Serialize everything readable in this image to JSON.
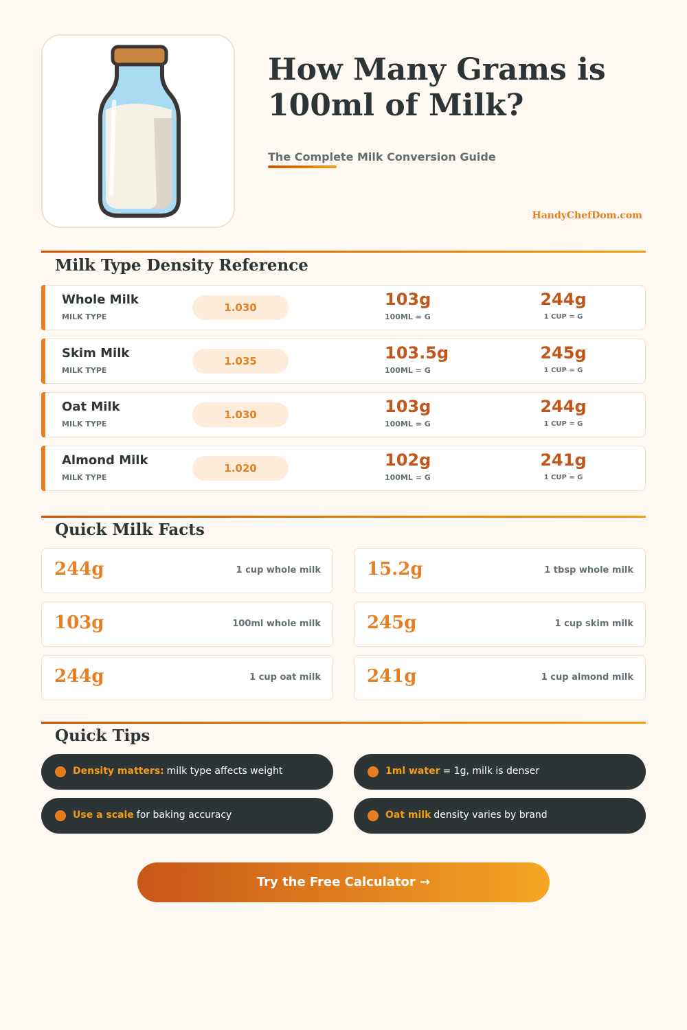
{
  "header": {
    "title": "How Many Grams is 100ml of Milk?",
    "subtitle": "The Complete Milk Conversion Guide",
    "site": "HandyChefDom.com"
  },
  "density": {
    "heading": "Milk Type Density Reference",
    "labels": {
      "type": "MILK TYPE",
      "ml": "100ML = G",
      "cup": "1 CUP = G"
    },
    "rows": [
      {
        "name": "Whole Milk",
        "density": "1.030",
        "grams": "103g",
        "cup": "244g"
      },
      {
        "name": "Skim Milk",
        "density": "1.035",
        "grams": "103.5g",
        "cup": "245g"
      },
      {
        "name": "Oat Milk",
        "density": "1.030",
        "grams": "103g",
        "cup": "244g"
      },
      {
        "name": "Almond Milk",
        "density": "1.020",
        "grams": "102g",
        "cup": "241g"
      }
    ]
  },
  "facts": {
    "heading": "Quick Milk Facts",
    "items": [
      {
        "value": "244g",
        "label": "1 cup whole milk"
      },
      {
        "value": "15.2g",
        "label": "1 tbsp whole milk"
      },
      {
        "value": "103g",
        "label": "100ml whole milk"
      },
      {
        "value": "245g",
        "label": "1 cup skim milk"
      },
      {
        "value": "244g",
        "label": "1 cup oat milk"
      },
      {
        "value": "241g",
        "label": "1 cup almond milk"
      }
    ]
  },
  "tips": {
    "heading": "Quick Tips",
    "items": [
      {
        "highlight": "Density matters:",
        "text": "milk type affects weight"
      },
      {
        "highlight": "1ml water",
        "text": "= 1g, milk is denser"
      },
      {
        "highlight": "Use a scale",
        "text": "for baking accuracy"
      },
      {
        "highlight": "Oat milk",
        "text": "density varies by brand"
      }
    ]
  },
  "cta": {
    "label": "Try the Free Calculator →"
  }
}
